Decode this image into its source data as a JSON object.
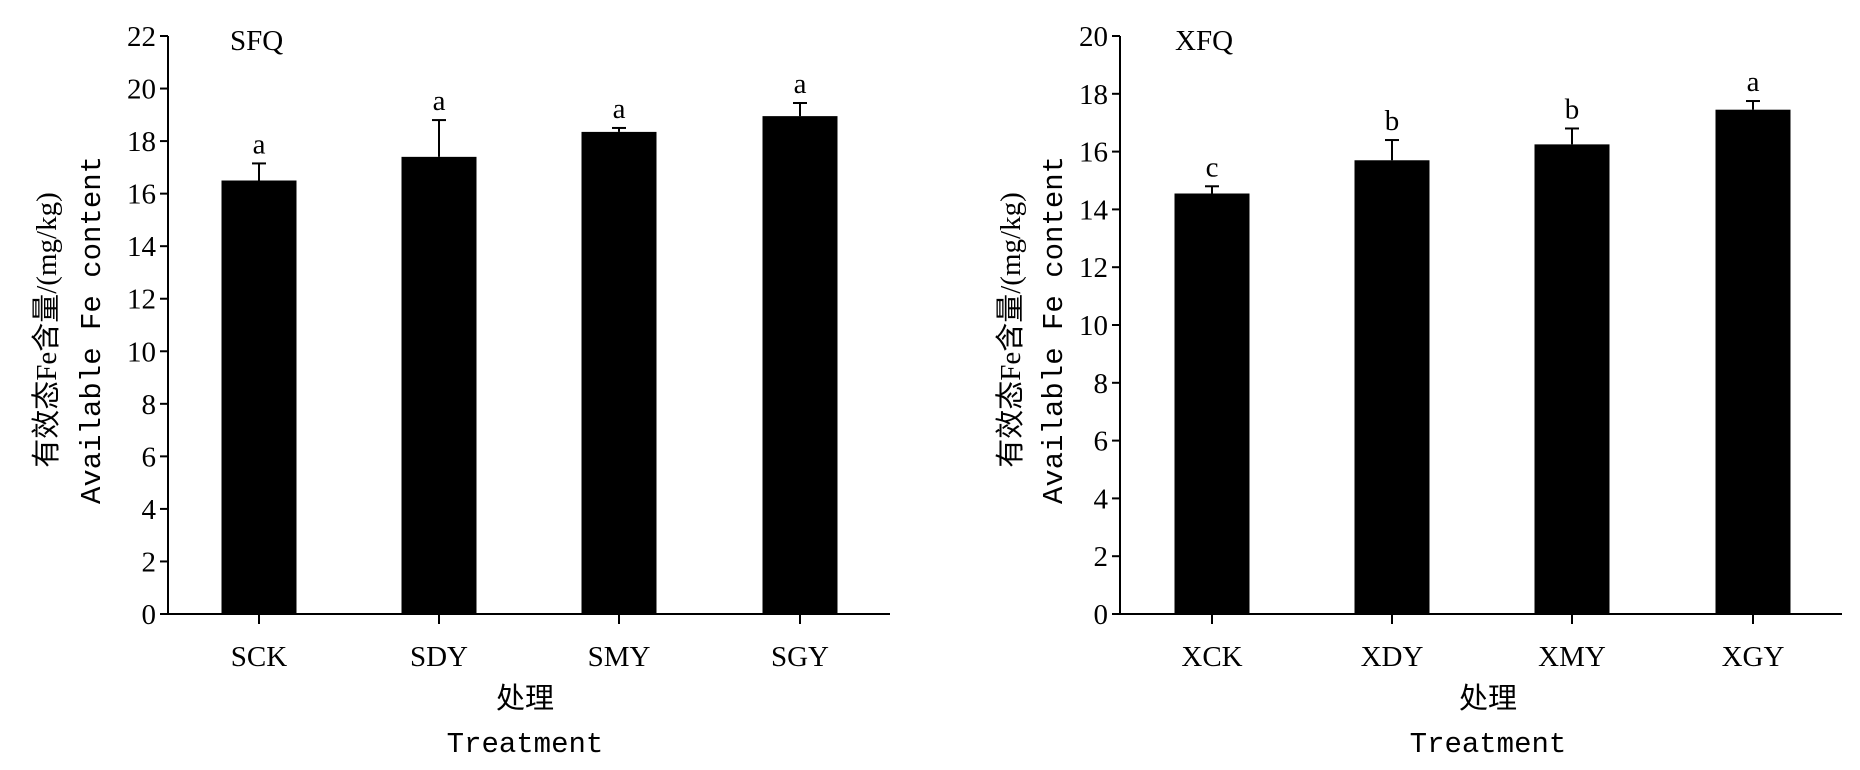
{
  "chart_data": [
    {
      "type": "bar",
      "panel_label": "SFQ",
      "categories": [
        "SCK",
        "SDY",
        "SMY",
        "SGY"
      ],
      "values": [
        16.5,
        17.4,
        18.35,
        18.95
      ],
      "error_upper": [
        0.65,
        1.4,
        0.15,
        0.5
      ],
      "significance": [
        "a",
        "a",
        "a",
        "a"
      ],
      "ylim": [
        0,
        22
      ],
      "yticks": [
        0,
        2,
        4,
        6,
        8,
        10,
        12,
        14,
        16,
        18,
        20,
        22
      ],
      "ylabel_cn": "有效态Fe含量/(mg/kg)",
      "ylabel_en": "Available Fe content",
      "xlabel_cn": "处理",
      "xlabel_en": "Treatment",
      "grid": false,
      "bar_color": "#000000"
    },
    {
      "type": "bar",
      "panel_label": "XFQ",
      "categories": [
        "XCK",
        "XDY",
        "XMY",
        "XGY"
      ],
      "values": [
        14.55,
        15.7,
        16.25,
        17.45
      ],
      "error_upper": [
        0.25,
        0.7,
        0.55,
        0.3
      ],
      "significance": [
        "c",
        "b",
        "b",
        "a"
      ],
      "ylim": [
        0,
        20
      ],
      "yticks": [
        0,
        2,
        4,
        6,
        8,
        10,
        12,
        14,
        16,
        18,
        20
      ],
      "ylabel_cn": "有效态Fe含量/(mg/kg)",
      "ylabel_en": "Available Fe content",
      "xlabel_cn": "处理",
      "xlabel_en": "Treatment",
      "grid": false,
      "bar_color": "#000000"
    }
  ]
}
